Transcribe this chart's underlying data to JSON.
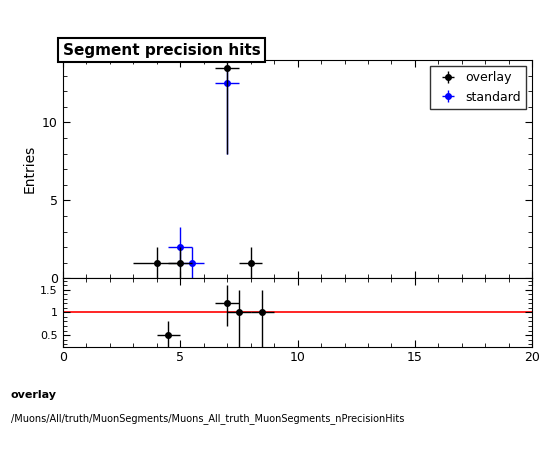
{
  "title": "Segment precision hits",
  "ylabel_main": "Entries",
  "xlim": [
    0,
    20
  ],
  "ylim_main": [
    0,
    14
  ],
  "ylim_ratio": [
    0.25,
    1.75
  ],
  "ratio_yticks": [
    0.5,
    1.0,
    1.5
  ],
  "footnote_line1": "overlay",
  "footnote_line2": "/Muons/All/truth/MuonSegments/Muons_All_truth_MuonSegments_nPrecisionHits",
  "overlay_color": "#000000",
  "standard_color": "#0000ff",
  "ratio_line_color": "#ff0000",
  "overlay_points": {
    "x": [
      4.0,
      5.0,
      7.0,
      8.0
    ],
    "y": [
      1.0,
      1.0,
      13.5,
      1.0
    ],
    "xerr": [
      1.0,
      0.5,
      0.5,
      0.5
    ],
    "yerr_lo": [
      1.0,
      1.0,
      5.5,
      1.0
    ],
    "yerr_hi": [
      1.0,
      1.0,
      0.5,
      1.0
    ]
  },
  "standard_points": {
    "x": [
      5.0,
      5.5,
      7.0
    ],
    "y": [
      2.0,
      1.0,
      12.5
    ],
    "xerr": [
      0.5,
      0.5,
      0.5
    ],
    "yerr_lo": [
      1.3,
      1.0,
      4.5
    ],
    "yerr_hi": [
      1.3,
      1.0,
      1.0
    ]
  },
  "ratio_points": {
    "x": [
      4.5,
      7.0,
      7.5,
      8.5
    ],
    "y": [
      0.5,
      1.2,
      1.0,
      1.0
    ],
    "xerr": [
      0.5,
      0.5,
      0.5,
      0.5
    ],
    "yerr_lo": [
      0.3,
      0.5,
      1.0,
      1.0
    ],
    "yerr_hi": [
      0.3,
      0.4,
      0.5,
      0.5
    ]
  },
  "main_yticks": [
    0,
    5,
    10
  ],
  "xticklabels": [
    "0",
    "5",
    "10",
    "15",
    "20"
  ],
  "xticks": [
    0,
    5,
    10,
    15,
    20
  ]
}
